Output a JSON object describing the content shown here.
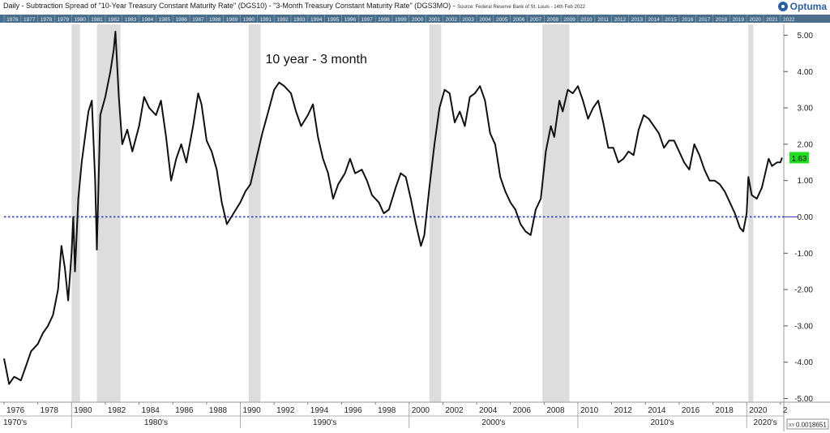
{
  "header": {
    "title": "Daily - Subtraction Spread of \"10-Year Treasury Constant Maturity Rate\" (DGS10) - \"3-Month Treasury Constant Maturity Rate\" (DGS3MO) - ",
    "source": "Source: Federal Reserve Bank of St. Louis - 14th Feb 2022",
    "brand": "Optuma"
  },
  "chart_data": {
    "type": "line",
    "annotation": "10 year - 3 month",
    "x_range": [
      1976,
      2022.2
    ],
    "ylim": [
      -5.1,
      5.3
    ],
    "y_ticks": [
      5.0,
      4.0,
      3.0,
      2.0,
      1.0,
      0.0,
      -1.0,
      -2.0,
      -3.0,
      -4.0,
      -5.0
    ],
    "y_tick_labels": [
      "5.00",
      "4.00",
      "3.00",
      "2.00",
      "1.00",
      "0.00",
      "-1.00",
      "-2.00",
      "-3.00",
      "-4.00",
      "-5.00"
    ],
    "top_year_labels": [
      "1976",
      "1977",
      "1978",
      "1979",
      "1980",
      "1981",
      "1982",
      "1983",
      "1984",
      "1985",
      "1986",
      "1987",
      "1988",
      "1989",
      "1990",
      "1991",
      "1992",
      "1993",
      "1994",
      "1995",
      "1996",
      "1997",
      "1998",
      "1999",
      "2000",
      "2001",
      "2002",
      "2003",
      "2004",
      "2005",
      "2006",
      "2007",
      "2008",
      "2009",
      "2010",
      "2011",
      "2012",
      "2013",
      "2014",
      "2015",
      "2016",
      "2017",
      "2018",
      "2019",
      "2020",
      "2021",
      "2022"
    ],
    "x_tick_labels": [
      "1976",
      "1978",
      "1980",
      "1982",
      "1984",
      "1986",
      "1988",
      "1990",
      "1992",
      "1994",
      "1996",
      "1998",
      "2000",
      "2002",
      "2004",
      "2006",
      "2008",
      "2010",
      "2012",
      "2014",
      "2016",
      "2018",
      "2020",
      "2"
    ],
    "decades": [
      {
        "label": "1970's",
        "start": 1976,
        "end": 1980
      },
      {
        "label": "1980's",
        "start": 1980,
        "end": 1990
      },
      {
        "label": "1990's",
        "start": 1990,
        "end": 2000
      },
      {
        "label": "2000's",
        "start": 2000,
        "end": 2010
      },
      {
        "label": "2010's",
        "start": 2010,
        "end": 2020
      },
      {
        "label": "2020's",
        "start": 2020,
        "end": 2022.2
      }
    ],
    "recessions": [
      [
        1980.0,
        1980.5
      ],
      [
        1981.5,
        1982.9
      ],
      [
        1990.5,
        1991.2
      ],
      [
        2001.2,
        2001.9
      ],
      [
        2007.9,
        2009.5
      ],
      [
        2020.1,
        2020.4
      ]
    ],
    "reference_line": 0.0,
    "last_value": "1.63",
    "corner_value": "0.0018651",
    "corner_label": "XY",
    "series": [
      {
        "points": [
          [
            1976.0,
            -3.9
          ],
          [
            1976.3,
            -4.6
          ],
          [
            1976.6,
            -4.4
          ],
          [
            1977.0,
            -4.5
          ],
          [
            1977.3,
            -4.1
          ],
          [
            1977.6,
            -3.7
          ],
          [
            1978.0,
            -3.5
          ],
          [
            1978.3,
            -3.2
          ],
          [
            1978.6,
            -3.0
          ],
          [
            1978.9,
            -2.7
          ],
          [
            1979.2,
            -2.0
          ],
          [
            1979.4,
            -0.8
          ],
          [
            1979.6,
            -1.4
          ],
          [
            1979.8,
            -2.3
          ],
          [
            1980.0,
            -1.0
          ],
          [
            1980.1,
            0.0
          ],
          [
            1980.2,
            -1.5
          ],
          [
            1980.4,
            0.5
          ],
          [
            1980.6,
            1.5
          ],
          [
            1980.8,
            2.2
          ],
          [
            1981.0,
            2.9
          ],
          [
            1981.2,
            3.2
          ],
          [
            1981.4,
            1.0
          ],
          [
            1981.5,
            -0.9
          ],
          [
            1981.7,
            2.8
          ],
          [
            1982.0,
            3.3
          ],
          [
            1982.3,
            4.0
          ],
          [
            1982.5,
            4.6
          ],
          [
            1982.6,
            5.1
          ],
          [
            1982.8,
            3.3
          ],
          [
            1983.0,
            2.0
          ],
          [
            1983.3,
            2.4
          ],
          [
            1983.6,
            1.8
          ],
          [
            1984.0,
            2.5
          ],
          [
            1984.3,
            3.3
          ],
          [
            1984.6,
            3.0
          ],
          [
            1985.0,
            2.8
          ],
          [
            1985.3,
            3.2
          ],
          [
            1985.6,
            2.2
          ],
          [
            1985.9,
            1.0
          ],
          [
            1986.2,
            1.6
          ],
          [
            1986.5,
            2.0
          ],
          [
            1986.8,
            1.5
          ],
          [
            1987.2,
            2.5
          ],
          [
            1987.5,
            3.4
          ],
          [
            1987.7,
            3.1
          ],
          [
            1988.0,
            2.1
          ],
          [
            1988.3,
            1.8
          ],
          [
            1988.6,
            1.3
          ],
          [
            1988.9,
            0.4
          ],
          [
            1989.2,
            -0.2
          ],
          [
            1989.6,
            0.1
          ],
          [
            1990.0,
            0.4
          ],
          [
            1990.3,
            0.7
          ],
          [
            1990.6,
            0.9
          ],
          [
            1991.0,
            1.7
          ],
          [
            1991.3,
            2.3
          ],
          [
            1991.6,
            2.8
          ],
          [
            1992.0,
            3.5
          ],
          [
            1992.3,
            3.7
          ],
          [
            1992.6,
            3.6
          ],
          [
            1993.0,
            3.4
          ],
          [
            1993.3,
            2.9
          ],
          [
            1993.6,
            2.5
          ],
          [
            1994.0,
            2.8
          ],
          [
            1994.3,
            3.1
          ],
          [
            1994.6,
            2.2
          ],
          [
            1994.9,
            1.6
          ],
          [
            1995.2,
            1.2
          ],
          [
            1995.5,
            0.5
          ],
          [
            1995.8,
            0.9
          ],
          [
            1996.2,
            1.2
          ],
          [
            1996.5,
            1.6
          ],
          [
            1996.8,
            1.2
          ],
          [
            1997.2,
            1.3
          ],
          [
            1997.5,
            1.0
          ],
          [
            1997.8,
            0.6
          ],
          [
            1998.2,
            0.4
          ],
          [
            1998.5,
            0.1
          ],
          [
            1998.8,
            0.2
          ],
          [
            1999.2,
            0.8
          ],
          [
            1999.5,
            1.2
          ],
          [
            1999.8,
            1.1
          ],
          [
            2000.1,
            0.5
          ],
          [
            2000.4,
            -0.2
          ],
          [
            2000.7,
            -0.8
          ],
          [
            2000.9,
            -0.5
          ],
          [
            2001.2,
            0.8
          ],
          [
            2001.5,
            2.0
          ],
          [
            2001.8,
            3.0
          ],
          [
            2002.1,
            3.5
          ],
          [
            2002.4,
            3.4
          ],
          [
            2002.7,
            2.6
          ],
          [
            2003.0,
            2.9
          ],
          [
            2003.3,
            2.5
          ],
          [
            2003.6,
            3.3
          ],
          [
            2003.9,
            3.4
          ],
          [
            2004.2,
            3.6
          ],
          [
            2004.5,
            3.2
          ],
          [
            2004.8,
            2.3
          ],
          [
            2005.1,
            2.0
          ],
          [
            2005.4,
            1.1
          ],
          [
            2005.7,
            0.7
          ],
          [
            2006.0,
            0.4
          ],
          [
            2006.3,
            0.2
          ],
          [
            2006.6,
            -0.2
          ],
          [
            2006.9,
            -0.4
          ],
          [
            2007.2,
            -0.5
          ],
          [
            2007.5,
            0.2
          ],
          [
            2007.8,
            0.5
          ],
          [
            2008.1,
            1.8
          ],
          [
            2008.4,
            2.5
          ],
          [
            2008.6,
            2.2
          ],
          [
            2008.9,
            3.2
          ],
          [
            2009.1,
            2.9
          ],
          [
            2009.4,
            3.5
          ],
          [
            2009.7,
            3.4
          ],
          [
            2010.0,
            3.6
          ],
          [
            2010.3,
            3.2
          ],
          [
            2010.6,
            2.7
          ],
          [
            2010.9,
            3.0
          ],
          [
            2011.2,
            3.2
          ],
          [
            2011.5,
            2.6
          ],
          [
            2011.8,
            1.9
          ],
          [
            2012.1,
            1.9
          ],
          [
            2012.4,
            1.5
          ],
          [
            2012.7,
            1.6
          ],
          [
            2013.0,
            1.8
          ],
          [
            2013.3,
            1.7
          ],
          [
            2013.6,
            2.4
          ],
          [
            2013.9,
            2.8
          ],
          [
            2014.2,
            2.7
          ],
          [
            2014.5,
            2.5
          ],
          [
            2014.8,
            2.3
          ],
          [
            2015.1,
            1.9
          ],
          [
            2015.4,
            2.1
          ],
          [
            2015.7,
            2.1
          ],
          [
            2016.0,
            1.8
          ],
          [
            2016.3,
            1.5
          ],
          [
            2016.6,
            1.3
          ],
          [
            2016.9,
            2.0
          ],
          [
            2017.2,
            1.7
          ],
          [
            2017.5,
            1.3
          ],
          [
            2017.8,
            1.0
          ],
          [
            2018.1,
            1.0
          ],
          [
            2018.4,
            0.9
          ],
          [
            2018.7,
            0.7
          ],
          [
            2019.0,
            0.4
          ],
          [
            2019.3,
            0.1
          ],
          [
            2019.6,
            -0.3
          ],
          [
            2019.8,
            -0.4
          ],
          [
            2020.0,
            0.1
          ],
          [
            2020.1,
            1.1
          ],
          [
            2020.3,
            0.6
          ],
          [
            2020.6,
            0.5
          ],
          [
            2020.9,
            0.8
          ],
          [
            2021.1,
            1.2
          ],
          [
            2021.3,
            1.6
          ],
          [
            2021.5,
            1.4
          ],
          [
            2021.8,
            1.5
          ],
          [
            2022.0,
            1.5
          ],
          [
            2022.1,
            1.63
          ]
        ]
      }
    ]
  }
}
